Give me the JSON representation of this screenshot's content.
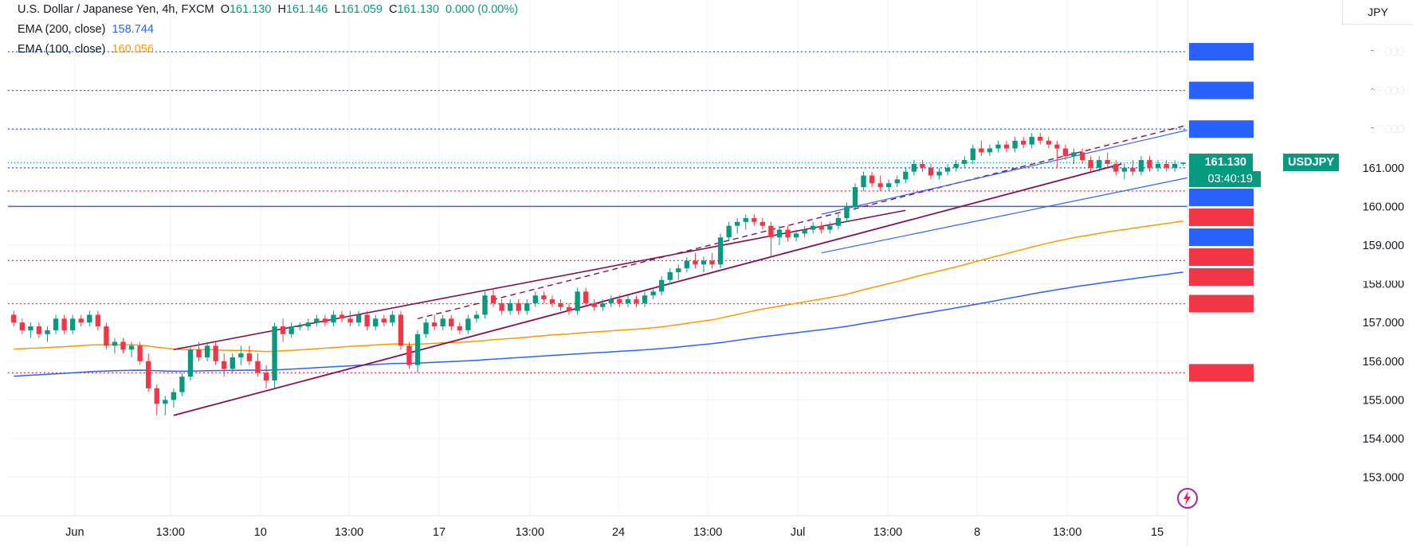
{
  "header": {
    "symbol_line": "U.S. Dollar / Japanese Yen, 4h, FXCM",
    "open_label": "O",
    "open_value": "161.130",
    "high_label": "H",
    "high_value": "161.146",
    "low_label": "L",
    "low_value": "161.059",
    "close_label": "C",
    "close_value": "161.130",
    "change": "0.000 (0.00%)",
    "ema200_label": "EMA (200, close)",
    "ema200_value": "158.744",
    "ema100_label": "EMA (100, close)",
    "ema100_value": "160.056"
  },
  "axis": {
    "currency": "JPY",
    "symbol_tag": "USDJPY",
    "countdown": "03:40:19"
  },
  "colors": {
    "up": "#089981",
    "down": "#f23645",
    "ema200": "#2962ff",
    "ema100": "#ff9800",
    "channel": "#880e4f",
    "blue_channel": "#2962ff",
    "red_level": "#f23645",
    "blue_level": "#2962ff",
    "grid": "#f0f3fa"
  },
  "chart_data": {
    "type": "candlestick",
    "instrument": "USDJPY",
    "timeframe": "4h",
    "y_ticks": [
      153.0,
      154.0,
      155.0,
      156.0,
      157.0,
      158.0,
      159.0,
      160.0,
      161.0,
      162.0,
      163.0,
      164.0
    ],
    "y_tick_labels": [
      "153.000",
      "154.000",
      "155.000",
      "156.000",
      "157.000",
      "158.000",
      "159.000",
      "160.000",
      "161.000",
      "162.000",
      "163.000",
      "164.000"
    ],
    "x_ticks": [
      "Jun",
      "13:00",
      "10",
      "13:00",
      "17",
      "13:00",
      "24",
      "13:00",
      "Jul",
      "13:00",
      "8",
      "13:00",
      "15"
    ],
    "horizontal_levels": [
      {
        "label": "164.000",
        "value": 164.0,
        "color": "#2962ff",
        "style": "dotted"
      },
      {
        "label": "163.000",
        "value": 163.0,
        "color": "#2962ff",
        "style": "dotted"
      },
      {
        "label": "162.000",
        "value": 162.0,
        "color": "#2962ff",
        "style": "dotted"
      },
      {
        "label": "161.000",
        "value": 161.0,
        "color": "#2962ff",
        "style": "dotted"
      },
      {
        "label": "160.400",
        "value": 160.4,
        "color": "#f23645",
        "style": "dotted"
      },
      {
        "label": "160.000",
        "value": 160.0,
        "color": "#2962ff",
        "style": "solid"
      },
      {
        "label": "160.000",
        "value": 160.0,
        "color": "#f23645",
        "style": "dotted"
      },
      {
        "label": "158.600",
        "value": 158.6,
        "color": "#f23645",
        "style": "dotted"
      },
      {
        "label": "157.488",
        "value": 157.488,
        "color": "#f23645",
        "style": "dotted"
      },
      {
        "label": "155.700",
        "value": 155.7,
        "color": "#f23645",
        "style": "dotted"
      }
    ],
    "last_price": {
      "label": "161.130",
      "value": 161.13
    },
    "candles": [
      [
        157.2,
        157.3,
        156.9,
        157.0
      ],
      [
        157.0,
        157.1,
        156.7,
        156.8
      ],
      [
        156.8,
        157.0,
        156.6,
        156.9
      ],
      [
        156.9,
        157.0,
        156.6,
        156.7
      ],
      [
        156.7,
        156.9,
        156.5,
        156.8
      ],
      [
        156.8,
        157.2,
        156.7,
        157.1
      ],
      [
        157.1,
        157.2,
        156.7,
        156.8
      ],
      [
        156.8,
        157.2,
        156.7,
        157.1
      ],
      [
        157.1,
        157.2,
        156.9,
        157.0
      ],
      [
        157.0,
        157.3,
        156.9,
        157.2
      ],
      [
        157.2,
        157.3,
        156.8,
        156.9
      ],
      [
        156.9,
        157.0,
        156.3,
        156.4
      ],
      [
        156.4,
        156.6,
        156.2,
        156.5
      ],
      [
        156.5,
        156.6,
        156.2,
        156.3
      ],
      [
        156.3,
        156.5,
        156.1,
        156.4
      ],
      [
        156.4,
        156.5,
        155.9,
        156.0
      ],
      [
        156.0,
        156.2,
        155.2,
        155.3
      ],
      [
        155.3,
        155.4,
        154.6,
        154.9
      ],
      [
        154.9,
        155.1,
        154.6,
        155.0
      ],
      [
        155.0,
        155.3,
        154.8,
        155.2
      ],
      [
        155.2,
        155.7,
        155.1,
        155.6
      ],
      [
        155.6,
        156.4,
        155.5,
        156.3
      ],
      [
        156.3,
        156.5,
        156.0,
        156.1
      ],
      [
        156.1,
        156.5,
        156.0,
        156.4
      ],
      [
        156.4,
        156.5,
        155.9,
        156.0
      ],
      [
        156.0,
        156.2,
        155.6,
        155.8
      ],
      [
        155.8,
        156.2,
        155.7,
        156.1
      ],
      [
        156.1,
        156.4,
        155.9,
        156.2
      ],
      [
        156.2,
        156.4,
        155.9,
        156.0
      ],
      [
        156.0,
        156.2,
        155.6,
        155.7
      ],
      [
        155.7,
        155.9,
        155.3,
        155.5
      ],
      [
        155.5,
        157.0,
        155.3,
        156.9
      ],
      [
        156.9,
        157.1,
        156.5,
        156.7
      ],
      [
        156.7,
        157.0,
        156.6,
        156.9
      ],
      [
        156.9,
        157.0,
        156.8,
        156.9
      ],
      [
        156.9,
        157.1,
        156.8,
        157.0
      ],
      [
        157.0,
        157.2,
        156.9,
        157.1
      ],
      [
        157.1,
        157.2,
        156.9,
        157.0
      ],
      [
        157.0,
        157.3,
        156.9,
        157.2
      ],
      [
        157.2,
        157.3,
        157.0,
        157.1
      ],
      [
        157.1,
        157.3,
        156.9,
        157.0
      ],
      [
        157.0,
        157.3,
        156.9,
        157.2
      ],
      [
        157.2,
        157.3,
        156.8,
        156.9
      ],
      [
        156.9,
        157.2,
        156.8,
        157.1
      ],
      [
        157.1,
        157.2,
        156.9,
        157.0
      ],
      [
        157.0,
        157.3,
        156.9,
        157.2
      ],
      [
        157.2,
        157.3,
        156.3,
        156.4
      ],
      [
        156.4,
        156.5,
        155.8,
        155.9
      ],
      [
        155.9,
        156.8,
        155.7,
        156.7
      ],
      [
        156.7,
        157.1,
        156.6,
        157.0
      ],
      [
        157.0,
        157.2,
        156.8,
        156.9
      ],
      [
        156.9,
        157.2,
        156.8,
        157.1
      ],
      [
        157.1,
        157.2,
        156.8,
        156.9
      ],
      [
        156.9,
        157.0,
        156.7,
        156.8
      ],
      [
        156.8,
        157.2,
        156.7,
        157.1
      ],
      [
        157.1,
        157.3,
        157.0,
        157.2
      ],
      [
        157.2,
        157.8,
        157.1,
        157.7
      ],
      [
        157.7,
        157.9,
        157.4,
        157.5
      ],
      [
        157.5,
        157.6,
        157.2,
        157.3
      ],
      [
        157.3,
        157.6,
        157.2,
        157.5
      ],
      [
        157.5,
        157.6,
        157.2,
        157.3
      ],
      [
        157.3,
        157.6,
        157.2,
        157.5
      ],
      [
        157.5,
        157.8,
        157.4,
        157.7
      ],
      [
        157.7,
        157.8,
        157.5,
        157.6
      ],
      [
        157.6,
        157.7,
        157.4,
        157.5
      ],
      [
        157.5,
        157.6,
        157.3,
        157.4
      ],
      [
        157.4,
        157.5,
        157.2,
        157.3
      ],
      [
        157.3,
        157.9,
        157.2,
        157.8
      ],
      [
        157.8,
        157.9,
        157.4,
        157.5
      ],
      [
        157.5,
        157.6,
        157.3,
        157.4
      ],
      [
        157.4,
        157.6,
        157.3,
        157.5
      ],
      [
        157.5,
        157.7,
        157.4,
        157.6
      ],
      [
        157.6,
        157.7,
        157.4,
        157.5
      ],
      [
        157.5,
        157.7,
        157.4,
        157.6
      ],
      [
        157.6,
        157.7,
        157.4,
        157.5
      ],
      [
        157.5,
        157.8,
        157.4,
        157.7
      ],
      [
        157.7,
        157.9,
        157.6,
        157.8
      ],
      [
        157.8,
        158.2,
        157.7,
        158.1
      ],
      [
        158.1,
        158.4,
        158.0,
        158.3
      ],
      [
        158.3,
        158.5,
        158.1,
        158.4
      ],
      [
        158.4,
        158.7,
        158.3,
        158.6
      ],
      [
        158.6,
        158.8,
        158.4,
        158.5
      ],
      [
        158.5,
        158.7,
        158.3,
        158.6
      ],
      [
        158.6,
        158.8,
        158.4,
        158.5
      ],
      [
        158.5,
        159.3,
        158.4,
        159.2
      ],
      [
        159.2,
        159.6,
        159.1,
        159.5
      ],
      [
        159.5,
        159.7,
        159.3,
        159.6
      ],
      [
        159.6,
        159.8,
        159.4,
        159.7
      ],
      [
        159.7,
        159.8,
        159.5,
        159.6
      ],
      [
        159.6,
        159.7,
        159.4,
        159.5
      ],
      [
        159.5,
        159.6,
        158.7,
        159.2
      ],
      [
        159.2,
        159.5,
        159.0,
        159.4
      ],
      [
        159.4,
        159.5,
        159.1,
        159.2
      ],
      [
        159.2,
        159.4,
        159.1,
        159.3
      ],
      [
        159.3,
        159.5,
        159.2,
        159.4
      ],
      [
        159.4,
        159.6,
        159.3,
        159.5
      ],
      [
        159.5,
        159.6,
        159.3,
        159.4
      ],
      [
        159.4,
        159.6,
        159.3,
        159.5
      ],
      [
        159.5,
        159.8,
        159.4,
        159.7
      ],
      [
        159.7,
        160.1,
        159.6,
        160.0
      ],
      [
        160.0,
        160.6,
        159.9,
        160.5
      ],
      [
        160.5,
        160.9,
        160.4,
        160.8
      ],
      [
        160.8,
        160.9,
        160.5,
        160.6
      ],
      [
        160.6,
        160.8,
        160.4,
        160.5
      ],
      [
        160.5,
        160.7,
        160.4,
        160.6
      ],
      [
        160.6,
        160.8,
        160.5,
        160.7
      ],
      [
        160.7,
        161.0,
        160.6,
        160.9
      ],
      [
        160.9,
        161.2,
        160.8,
        161.1
      ],
      [
        161.1,
        161.2,
        160.9,
        161.0
      ],
      [
        161.0,
        161.1,
        160.7,
        160.8
      ],
      [
        160.8,
        161.0,
        160.7,
        160.9
      ],
      [
        160.9,
        161.1,
        160.8,
        161.0
      ],
      [
        161.0,
        161.2,
        160.9,
        161.1
      ],
      [
        161.1,
        161.3,
        161.0,
        161.2
      ],
      [
        161.2,
        161.6,
        161.1,
        161.5
      ],
      [
        161.5,
        161.7,
        161.3,
        161.4
      ],
      [
        161.4,
        161.6,
        161.3,
        161.5
      ],
      [
        161.5,
        161.7,
        161.4,
        161.6
      ],
      [
        161.6,
        161.7,
        161.4,
        161.5
      ],
      [
        161.5,
        161.8,
        161.4,
        161.7
      ],
      [
        161.7,
        161.8,
        161.5,
        161.6
      ],
      [
        161.6,
        161.9,
        161.5,
        161.8
      ],
      [
        161.8,
        161.9,
        161.6,
        161.7
      ],
      [
        161.7,
        161.8,
        161.5,
        161.6
      ],
      [
        161.6,
        161.7,
        161.0,
        161.5
      ],
      [
        161.5,
        161.6,
        161.2,
        161.3
      ],
      [
        161.3,
        161.5,
        161.1,
        161.4
      ],
      [
        161.4,
        161.5,
        161.1,
        161.2
      ],
      [
        161.2,
        161.3,
        160.9,
        161.0
      ],
      [
        161.0,
        161.3,
        160.9,
        161.2
      ],
      [
        161.2,
        161.4,
        161.0,
        161.1
      ],
      [
        161.1,
        161.2,
        160.8,
        160.9
      ],
      [
        160.9,
        161.1,
        160.7,
        161.0
      ],
      [
        161.0,
        161.2,
        160.8,
        160.9
      ],
      [
        160.9,
        161.3,
        160.8,
        161.2
      ],
      [
        161.2,
        161.3,
        160.9,
        161.0
      ],
      [
        161.0,
        161.2,
        160.9,
        161.1
      ],
      [
        161.1,
        161.2,
        160.9,
        161.0
      ],
      [
        161.0,
        161.2,
        160.9,
        161.1
      ],
      [
        161.1,
        161.15,
        161.05,
        161.13
      ]
    ]
  }
}
